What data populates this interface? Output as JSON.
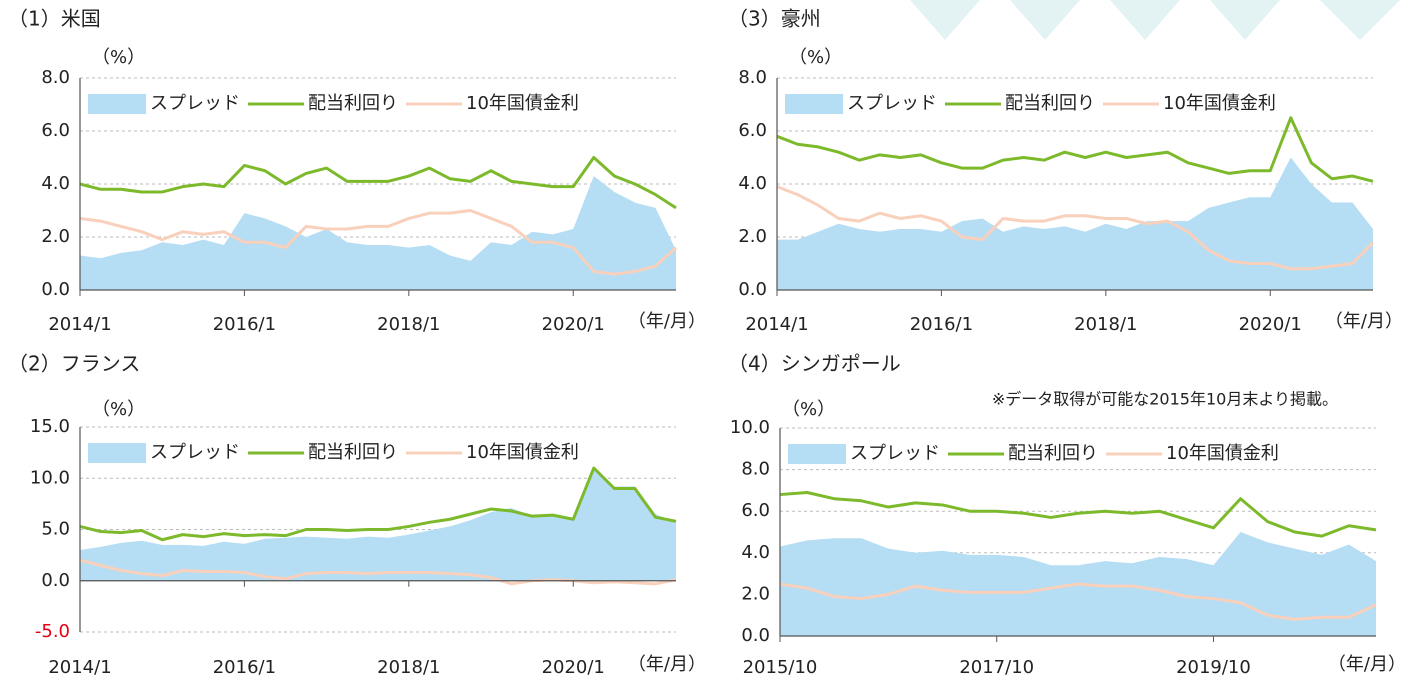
{
  "chart_data": [
    {
      "type": "area_line",
      "title": "（1）米国",
      "y_label": "（%）",
      "x_label": "（年/月）",
      "categories": [
        "2014/1",
        null,
        null,
        null,
        null,
        null,
        null,
        null,
        "2016/1",
        null,
        null,
        null,
        null,
        null,
        null,
        null,
        "2018/1",
        null,
        null,
        null,
        null,
        null,
        null,
        null,
        "2020/1",
        null,
        null,
        null,
        null,
        null
      ],
      "series": [
        {
          "name": "スプレッド",
          "kind": "area",
          "color": "#b5ddf4",
          "values": [
            1.3,
            1.2,
            1.4,
            1.5,
            1.8,
            1.7,
            1.9,
            1.7,
            2.9,
            2.7,
            2.4,
            2.0,
            2.3,
            1.8,
            1.7,
            1.7,
            1.6,
            1.7,
            1.3,
            1.1,
            1.8,
            1.7,
            2.2,
            2.1,
            2.3,
            4.3,
            3.7,
            3.3,
            3.1,
            1.5
          ]
        },
        {
          "name": "配当利回り",
          "kind": "line",
          "color": "#7cb92b",
          "values": [
            4.0,
            3.8,
            3.8,
            3.7,
            3.7,
            3.9,
            4.0,
            3.9,
            4.7,
            4.5,
            4.0,
            4.4,
            4.6,
            4.1,
            4.1,
            4.1,
            4.3,
            4.6,
            4.2,
            4.1,
            4.5,
            4.1,
            4.0,
            3.9,
            3.9,
            5.0,
            4.3,
            4.0,
            3.6,
            3.1
          ]
        },
        {
          "name": "10年国債金利",
          "kind": "line",
          "color": "#f8d0bb",
          "values": [
            2.7,
            2.6,
            2.4,
            2.2,
            1.9,
            2.2,
            2.1,
            2.2,
            1.8,
            1.8,
            1.6,
            2.4,
            2.3,
            2.3,
            2.4,
            2.4,
            2.7,
            2.9,
            2.9,
            3.0,
            2.7,
            2.4,
            1.8,
            1.8,
            1.6,
            0.7,
            0.6,
            0.7,
            0.9,
            1.6
          ]
        }
      ],
      "ylim": [
        0,
        8
      ],
      "yticks": [
        {
          "value": 0,
          "label": "0.0"
        },
        {
          "value": 2,
          "label": "2.0"
        },
        {
          "value": 4,
          "label": "4.0"
        },
        {
          "value": 6,
          "label": "6.0"
        },
        {
          "value": 8,
          "label": "8.0"
        }
      ],
      "grid": true,
      "legend": "top"
    },
    {
      "type": "area_line",
      "title": "（3）豪州",
      "y_label": "（%）",
      "x_label": "（年/月）",
      "categories": [
        "2014/1",
        null,
        null,
        null,
        null,
        null,
        null,
        null,
        "2016/1",
        null,
        null,
        null,
        null,
        null,
        null,
        null,
        "2018/1",
        null,
        null,
        null,
        null,
        null,
        null,
        null,
        "2020/1",
        null,
        null,
        null,
        null,
        null
      ],
      "series": [
        {
          "name": "スプレッド",
          "kind": "area",
          "color": "#b5ddf4",
          "values": [
            1.9,
            1.9,
            2.2,
            2.5,
            2.3,
            2.2,
            2.3,
            2.3,
            2.2,
            2.6,
            2.7,
            2.2,
            2.4,
            2.3,
            2.4,
            2.2,
            2.5,
            2.3,
            2.6,
            2.6,
            2.6,
            3.1,
            3.3,
            3.5,
            3.5,
            5.0,
            4.0,
            3.3,
            3.3,
            2.3
          ]
        },
        {
          "name": "配当利回り",
          "kind": "line",
          "color": "#7cb92b",
          "values": [
            5.8,
            5.5,
            5.4,
            5.2,
            4.9,
            5.1,
            5.0,
            5.1,
            4.8,
            4.6,
            4.6,
            4.9,
            5.0,
            4.9,
            5.2,
            5.0,
            5.2,
            5.0,
            5.1,
            5.2,
            4.8,
            4.6,
            4.4,
            4.5,
            4.5,
            6.5,
            4.8,
            4.2,
            4.3,
            4.1
          ]
        },
        {
          "name": "10年国債金利",
          "kind": "line",
          "color": "#f8d0bb",
          "values": [
            3.9,
            3.6,
            3.2,
            2.7,
            2.6,
            2.9,
            2.7,
            2.8,
            2.6,
            2.0,
            1.9,
            2.7,
            2.6,
            2.6,
            2.8,
            2.8,
            2.7,
            2.7,
            2.5,
            2.6,
            2.2,
            1.5,
            1.1,
            1.0,
            1.0,
            0.8,
            0.8,
            0.9,
            1.0,
            1.8
          ]
        }
      ],
      "ylim": [
        0,
        8
      ],
      "yticks": [
        {
          "value": 0,
          "label": "0.0"
        },
        {
          "value": 2,
          "label": "2.0"
        },
        {
          "value": 4,
          "label": "4.0"
        },
        {
          "value": 6,
          "label": "6.0"
        },
        {
          "value": 8,
          "label": "8.0"
        }
      ],
      "grid": true,
      "legend": "top"
    },
    {
      "type": "area_line",
      "title": "（2）フランス",
      "y_label": "（%）",
      "x_label": "（年/月）",
      "categories": [
        "2014/1",
        null,
        null,
        null,
        null,
        null,
        null,
        null,
        "2016/1",
        null,
        null,
        null,
        null,
        null,
        null,
        null,
        "2018/1",
        null,
        null,
        null,
        null,
        null,
        null,
        null,
        "2020/1",
        null,
        null,
        null,
        null,
        null
      ],
      "series": [
        {
          "name": "スプレッド",
          "kind": "area",
          "color": "#b5ddf4",
          "values": [
            3.0,
            3.3,
            3.7,
            3.9,
            3.5,
            3.5,
            3.4,
            3.8,
            3.6,
            4.1,
            4.2,
            4.3,
            4.2,
            4.1,
            4.3,
            4.2,
            4.5,
            4.9,
            5.3,
            5.9,
            6.7,
            7.1,
            6.3,
            6.3,
            6.0,
            11.0,
            9.2,
            9.2,
            6.5,
            5.7
          ]
        },
        {
          "name": "配当利回り",
          "kind": "line",
          "color": "#7cb92b",
          "values": [
            5.3,
            4.8,
            4.7,
            4.9,
            4.0,
            4.5,
            4.3,
            4.6,
            4.4,
            4.5,
            4.4,
            5.0,
            5.0,
            4.9,
            5.0,
            5.0,
            5.3,
            5.7,
            6.0,
            6.5,
            7.0,
            6.8,
            6.3,
            6.4,
            6.0,
            11.0,
            9.0,
            9.0,
            6.2,
            5.8
          ]
        },
        {
          "name": "10年国債金利",
          "kind": "line",
          "color": "#f8d0bb",
          "values": [
            2.0,
            1.5,
            1.0,
            0.7,
            0.5,
            1.0,
            0.9,
            0.9,
            0.8,
            0.4,
            0.2,
            0.7,
            0.8,
            0.8,
            0.7,
            0.8,
            0.8,
            0.8,
            0.7,
            0.6,
            0.3,
            -0.3,
            0.0,
            0.1,
            0.0,
            -0.2,
            -0.1,
            -0.2,
            -0.3,
            0.1
          ]
        }
      ],
      "ylim": [
        -5,
        15
      ],
      "yticks": [
        {
          "value": -5,
          "label": "-5.0"
        },
        {
          "value": 0,
          "label": "0.0"
        },
        {
          "value": 5,
          "label": "5.0"
        },
        {
          "value": 10,
          "label": "10.0"
        },
        {
          "value": 15,
          "label": "15.0"
        }
      ],
      "negative_tick_color": "#e60012",
      "grid": true,
      "legend": "top"
    },
    {
      "type": "area_line",
      "title": "（4）シンガポール",
      "y_label": "（%）",
      "x_label": "（年/月）",
      "annotation": "※データ取得が可能な2015年10月末より掲載。",
      "categories": [
        "2015/10",
        null,
        null,
        null,
        null,
        null,
        null,
        null,
        "2017/10",
        null,
        null,
        null,
        null,
        null,
        null,
        null,
        "2019/10",
        null,
        null,
        null,
        null,
        null,
        null
      ],
      "series": [
        {
          "name": "スプレッド",
          "kind": "area",
          "color": "#b5ddf4",
          "values": [
            4.3,
            4.6,
            4.7,
            4.7,
            4.2,
            4.0,
            4.1,
            3.9,
            3.9,
            3.8,
            3.4,
            3.4,
            3.6,
            3.5,
            3.8,
            3.7,
            3.4,
            5.0,
            4.5,
            4.2,
            3.9,
            4.4,
            3.6
          ]
        },
        {
          "name": "配当利回り",
          "kind": "line",
          "color": "#7cb92b",
          "values": [
            6.8,
            6.9,
            6.6,
            6.5,
            6.2,
            6.4,
            6.3,
            6.0,
            6.0,
            5.9,
            5.7,
            5.9,
            6.0,
            5.9,
            6.0,
            5.6,
            5.2,
            6.6,
            5.5,
            5.0,
            4.8,
            5.3,
            5.1
          ]
        },
        {
          "name": "10年国債金利",
          "kind": "line",
          "color": "#f8d0bb",
          "values": [
            2.5,
            2.3,
            1.9,
            1.8,
            2.0,
            2.4,
            2.2,
            2.1,
            2.1,
            2.1,
            2.3,
            2.5,
            2.4,
            2.4,
            2.2,
            1.9,
            1.8,
            1.6,
            1.0,
            0.8,
            0.9,
            0.9,
            1.5
          ]
        }
      ],
      "ylim": [
        0,
        10
      ],
      "yticks": [
        {
          "value": 0,
          "label": "0.0"
        },
        {
          "value": 2,
          "label": "2.0"
        },
        {
          "value": 4,
          "label": "4.0"
        },
        {
          "value": 6,
          "label": "6.0"
        },
        {
          "value": 8,
          "label": "8.0"
        },
        {
          "value": 10,
          "label": "10.0"
        }
      ],
      "grid": true,
      "legend": "top"
    }
  ]
}
